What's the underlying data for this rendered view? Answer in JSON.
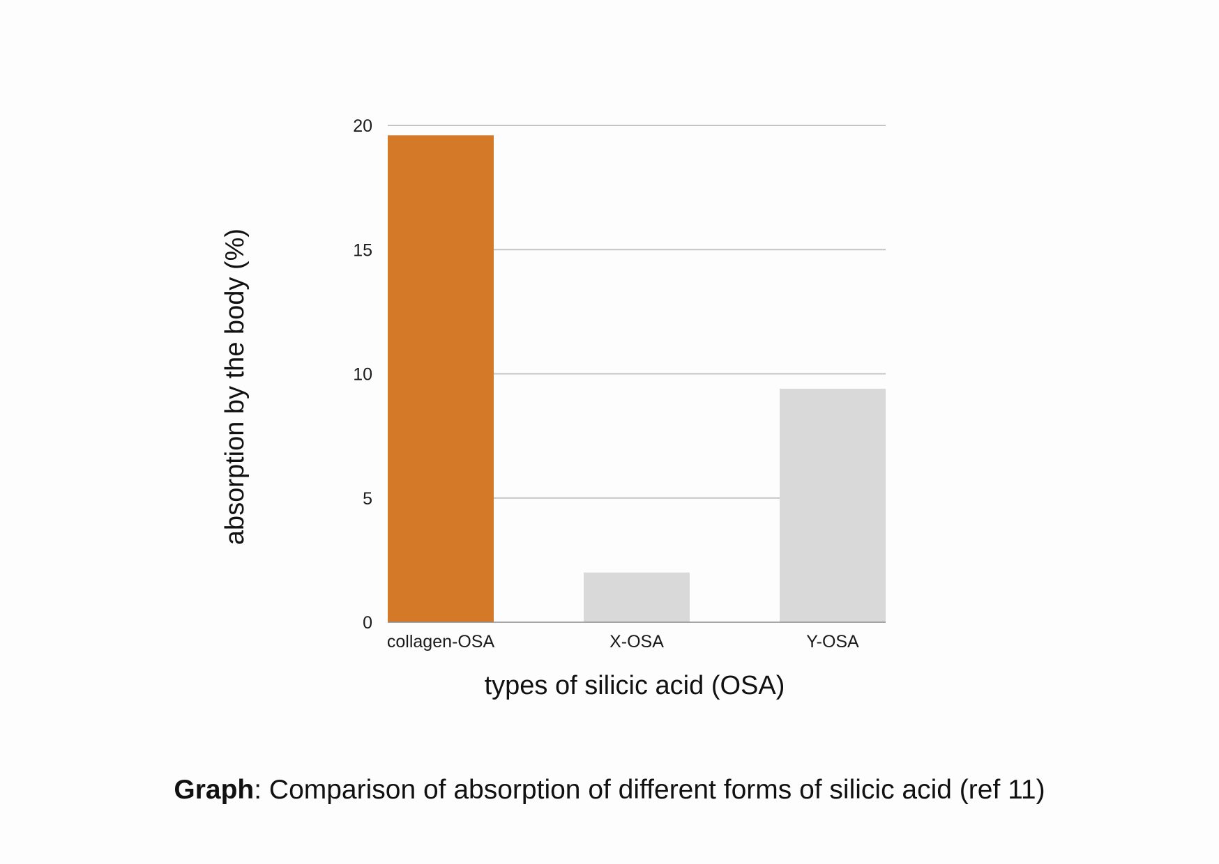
{
  "chart_data": {
    "type": "bar",
    "categories": [
      "collagen-OSA",
      "X-OSA",
      "Y-OSA"
    ],
    "values": [
      19.6,
      2,
      9.4
    ],
    "xlabel": "types of silicic acid (OSA)",
    "ylabel": "absorption by the body (%)",
    "ylim": [
      0,
      20
    ],
    "yticks": [
      "0",
      "5",
      "10",
      "15",
      "20"
    ],
    "grid": true,
    "legend": "none",
    "bar_colors": [
      "#d47928",
      "#d9d9d9",
      "#d9d9d9"
    ]
  },
  "colors": {
    "gridline": "#c4c4c4",
    "baseline": "#8a8a8a",
    "highlight_bar": "#d47928",
    "other_bars": "#d9d9d9"
  },
  "caption": {
    "bold": "Graph",
    "text": ": Comparison of absorption of different forms of silicic acid (ref 11)"
  }
}
